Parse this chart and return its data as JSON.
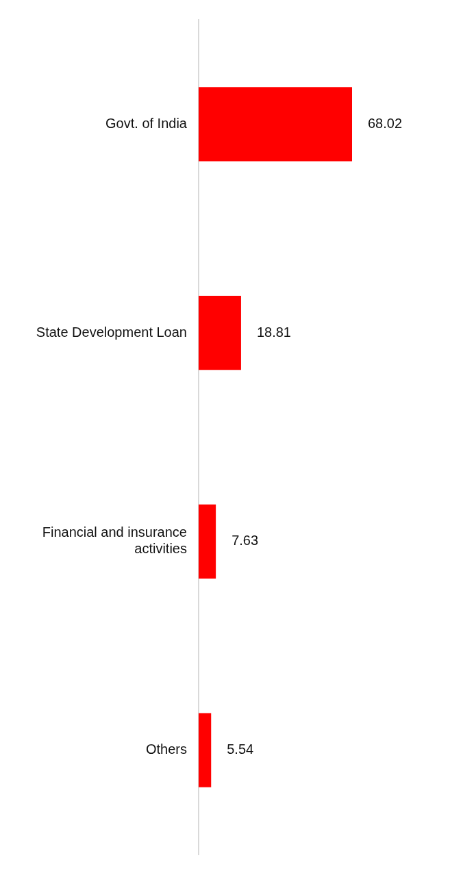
{
  "chart_data": {
    "type": "bar",
    "orientation": "horizontal",
    "categories": [
      "Govt. of India",
      "State Development Loan",
      "Financial and insurance activities",
      "Others"
    ],
    "values": [
      68.02,
      18.81,
      7.63,
      5.54
    ],
    "color": "#ff0000",
    "data_labels": true,
    "grid": false,
    "legend": false,
    "tick_labels": "y"
  }
}
